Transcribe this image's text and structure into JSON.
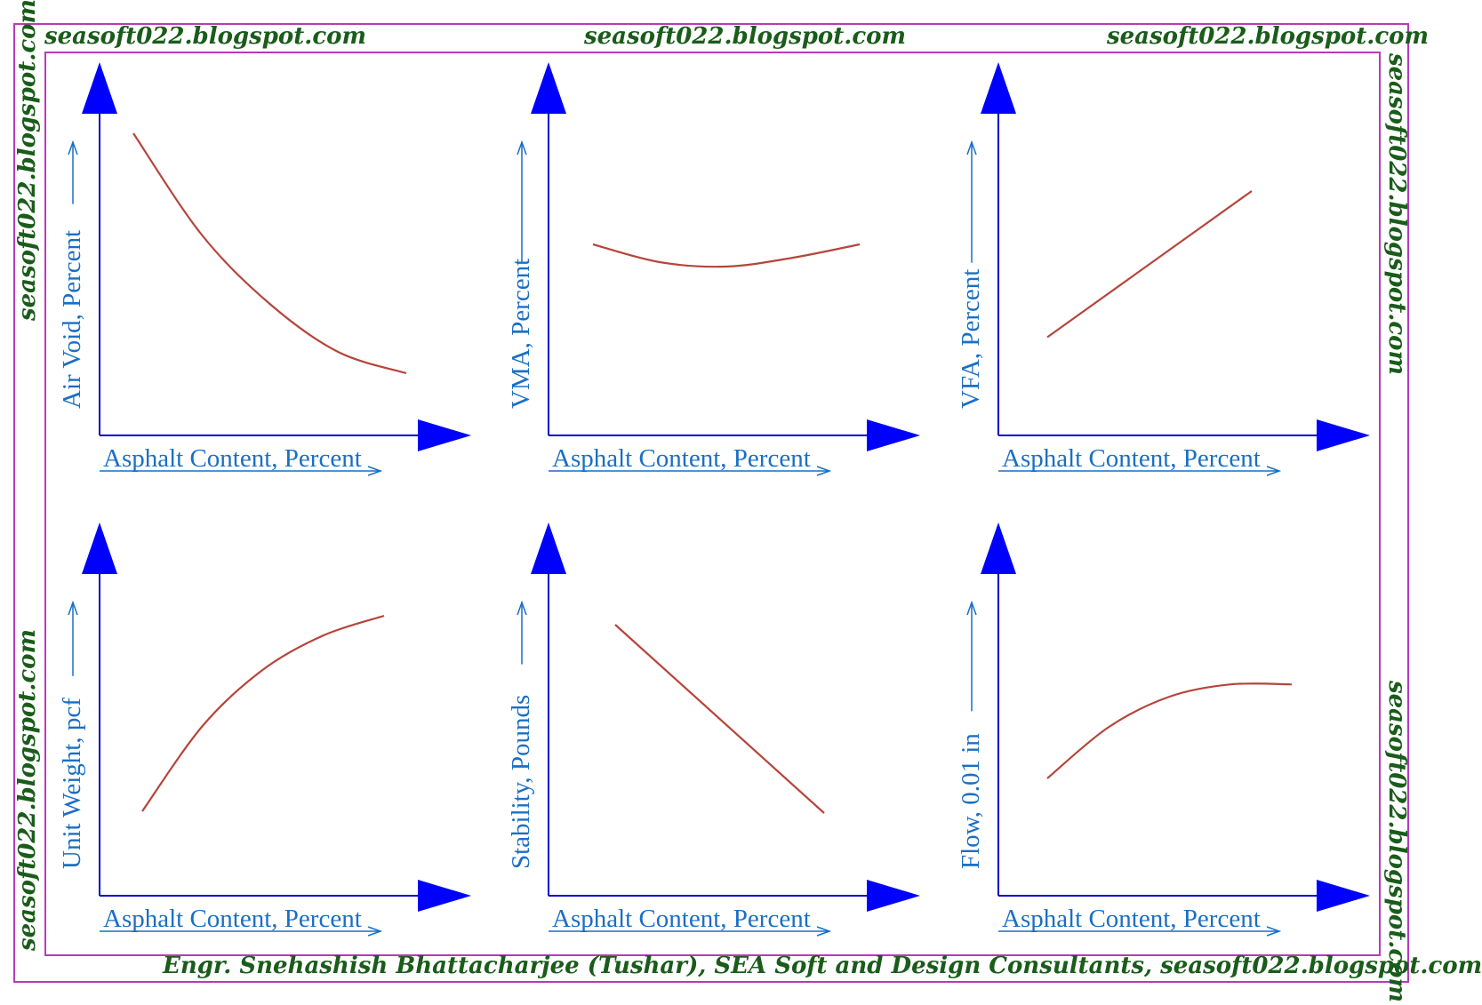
{
  "watermark": "seasoft022.blogspot.com",
  "footer": "Engr. Snehashish Bhattacharjee (Tushar), SEA Soft and Design Consultants, seasoft022.blogspot.com",
  "colors": {
    "frame": "#b83ab8",
    "axis": "#0000cc",
    "arrowhead": "#0000ff",
    "label": "#1a6fc4",
    "curve": "#b5453b",
    "watermark": "#1a5c1a"
  },
  "chart_data": [
    {
      "type": "line",
      "title": "",
      "xlabel": "Asphalt Content, Percent",
      "ylabel": "Air Void, Percent",
      "shape": "decreasing-concave-up",
      "x": [
        0,
        0.25,
        0.5,
        0.75,
        1.0
      ],
      "y": [
        1.0,
        0.62,
        0.36,
        0.18,
        0.1
      ]
    },
    {
      "type": "line",
      "title": "",
      "xlabel": "Asphalt Content, Percent",
      "ylabel": "VMA, Percent",
      "shape": "u-shaped-minimum",
      "x": [
        0,
        0.25,
        0.5,
        0.75,
        1.0
      ],
      "y": [
        0.7,
        0.62,
        0.6,
        0.64,
        0.7
      ]
    },
    {
      "type": "line",
      "title": "",
      "xlabel": "Asphalt Content, Percent",
      "ylabel": "VFA, Percent",
      "shape": "increasing-linear",
      "x": [
        0,
        1.0
      ],
      "y": [
        0.3,
        1.0
      ]
    },
    {
      "type": "line",
      "title": "",
      "xlabel": "Asphalt Content, Percent",
      "ylabel": "Unit Weight, pcf",
      "shape": "increasing-concave-down",
      "x": [
        0,
        0.25,
        0.5,
        0.75,
        1.0
      ],
      "y": [
        0.2,
        0.55,
        0.78,
        0.92,
        1.0
      ]
    },
    {
      "type": "line",
      "title": "",
      "xlabel": "Asphalt Content, Percent",
      "ylabel": "Stability, Pounds",
      "shape": "decreasing-linear",
      "x": [
        0,
        1.0
      ],
      "y": [
        1.0,
        0.2
      ]
    },
    {
      "type": "line",
      "title": "",
      "xlabel": "Asphalt Content, Percent",
      "ylabel": "Flow, 0.01 in",
      "shape": "increasing-concave-down",
      "x": [
        0,
        0.25,
        0.5,
        0.75,
        1.0
      ],
      "y": [
        0.4,
        0.65,
        0.8,
        0.86,
        0.86
      ]
    }
  ]
}
